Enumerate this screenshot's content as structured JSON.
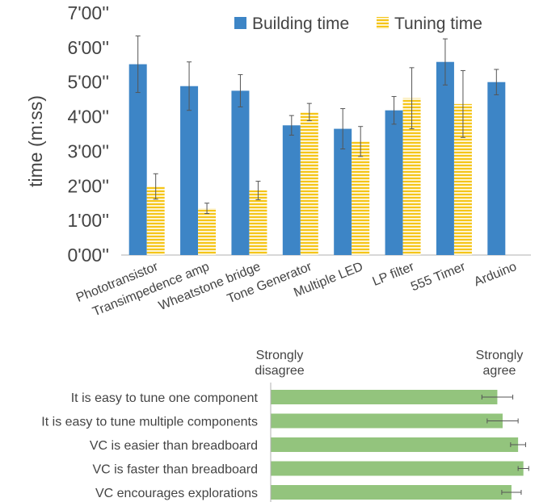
{
  "colors": {
    "building": "#3d85c6",
    "tuning_fill": "#f5c518",
    "tuning_stripe": "#ffffff",
    "agreement": "#93c47d",
    "error_bar": "#555555",
    "axis_text": "#444444",
    "axis_line": "#b0b0b0"
  },
  "chart_data": [
    {
      "type": "bar",
      "title": "",
      "xlabel": "",
      "ylabel": "time (m:ss)",
      "ylim": [
        0,
        420
      ],
      "y_unit": "seconds",
      "y_ticks": [
        0,
        60,
        120,
        180,
        240,
        300,
        360,
        420
      ],
      "y_tick_labels": [
        "0'00''",
        "1'00''",
        "2'00''",
        "3'00''",
        "4'00''",
        "5'00''",
        "6'00''",
        "7'00''"
      ],
      "legend_position": "top-right",
      "grid": false,
      "categories": [
        "Phototransistor",
        "Transimpedence amp",
        "Wheatstone bridge",
        "Tone Generator",
        "Multiple LED",
        "LP filter",
        "555 Timer",
        "Arduino"
      ],
      "series": [
        {
          "name": "Building time",
          "values": [
            331,
            293,
            285,
            225,
            219,
            251,
            335,
            300
          ],
          "error": [
            49,
            42,
            28,
            17,
            35,
            24,
            40,
            22
          ]
        },
        {
          "name": "Tuning time",
          "values": [
            119,
            81,
            112,
            248,
            197,
            272,
            262,
            null
          ],
          "error": [
            22,
            9,
            16,
            15,
            26,
            53,
            58,
            null
          ]
        }
      ]
    },
    {
      "type": "bar",
      "orientation": "horizontal",
      "title": "",
      "scale_labels": [
        "Strongly\ndisagree",
        "Strongly\nagree"
      ],
      "xlim": [
        1,
        7
      ],
      "categories": [
        "It is easy to tune one component",
        "It is easy to tune multiple components",
        "VC is easier than breadboard",
        "VC is faster than breadboard",
        "VC encourages explorations"
      ],
      "values": [
        6.13,
        6.25,
        6.6,
        6.72,
        6.45
      ],
      "error": [
        0.35,
        0.35,
        0.17,
        0.12,
        0.22
      ]
    }
  ]
}
